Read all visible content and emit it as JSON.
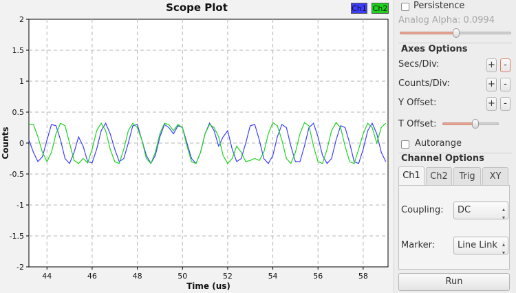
{
  "plot": {
    "title": "Scope Plot",
    "xlabel": "Time (us)",
    "ylabel": "Counts",
    "legend": [
      {
        "label": "Ch1",
        "color": "#3c3cff"
      },
      {
        "label": "Ch2",
        "color": "#1ed21e"
      }
    ]
  },
  "chart_data": {
    "type": "line",
    "title": "Scope Plot",
    "xlabel": "Time (us)",
    "ylabel": "Counts",
    "xlim": [
      43.2,
      59.1
    ],
    "ylim": [
      -2,
      2
    ],
    "x_ticks": [
      "44",
      "46",
      "48",
      "50",
      "52",
      "54",
      "56",
      "58"
    ],
    "y_ticks": [
      "2",
      "1.5",
      "1",
      "0.5",
      "0",
      "-0.5",
      "-1",
      "-1.5",
      "-2"
    ],
    "grid": true,
    "legend_position": "top-right",
    "series": [
      {
        "name": "Ch1",
        "color": "#3c3cff",
        "x": [
          43.2,
          43.4,
          43.6,
          43.8,
          44.0,
          44.2,
          44.4,
          44.6,
          44.8,
          45.0,
          45.2,
          45.4,
          45.6,
          45.8,
          46.0,
          46.2,
          46.4,
          46.6,
          46.8,
          47.0,
          47.2,
          47.4,
          47.6,
          47.8,
          48.0,
          48.2,
          48.4,
          48.6,
          48.8,
          49.0,
          49.2,
          49.4,
          49.6,
          49.8,
          50.0,
          50.2,
          50.4,
          50.6,
          50.8,
          51.0,
          51.2,
          51.4,
          51.6,
          51.8,
          52.0,
          52.2,
          52.4,
          52.6,
          52.8,
          53.0,
          53.2,
          53.4,
          53.6,
          53.8,
          54.0,
          54.2,
          54.4,
          54.6,
          54.8,
          55.0,
          55.2,
          55.4,
          55.6,
          55.8,
          56.0,
          56.2,
          56.4,
          56.6,
          56.8,
          57.0,
          57.2,
          57.4,
          57.6,
          57.8,
          58.0,
          58.2,
          58.4,
          58.6,
          58.8,
          59.0
        ],
        "y": [
          0.05,
          -0.15,
          -0.3,
          -0.22,
          0.05,
          0.3,
          0.28,
          0.05,
          -0.25,
          -0.33,
          -0.15,
          0.1,
          -0.05,
          -0.3,
          -0.32,
          -0.1,
          0.2,
          0.32,
          0.15,
          -0.1,
          -0.3,
          -0.25,
          0.0,
          0.28,
          0.3,
          0.05,
          -0.2,
          -0.33,
          -0.2,
          0.1,
          0.3,
          0.25,
          0.15,
          0.28,
          0.25,
          0.0,
          -0.25,
          -0.33,
          -0.15,
          0.15,
          0.32,
          0.2,
          -0.05,
          0.1,
          0.2,
          -0.1,
          -0.3,
          -0.25,
          0.0,
          0.28,
          0.3,
          0.05,
          -0.25,
          -0.33,
          -0.2,
          0.1,
          0.3,
          0.25,
          -0.05,
          -0.3,
          -0.3,
          -0.05,
          0.25,
          0.32,
          0.1,
          -0.2,
          -0.33,
          -0.25,
          0.05,
          0.28,
          0.25,
          0.0,
          -0.3,
          -0.33,
          -0.1,
          0.2,
          0.32,
          0.15,
          -0.15,
          -0.3
        ]
      },
      {
        "name": "Ch2",
        "color": "#1ed21e",
        "x": [
          43.2,
          43.4,
          43.6,
          43.8,
          44.0,
          44.2,
          44.4,
          44.6,
          44.8,
          45.0,
          45.2,
          45.4,
          45.6,
          45.8,
          46.0,
          46.2,
          46.4,
          46.6,
          46.8,
          47.0,
          47.2,
          47.4,
          47.6,
          47.8,
          48.0,
          48.2,
          48.4,
          48.6,
          48.8,
          49.0,
          49.2,
          49.4,
          49.6,
          49.8,
          50.0,
          50.2,
          50.4,
          50.6,
          50.8,
          51.0,
          51.2,
          51.4,
          51.6,
          51.8,
          52.0,
          52.2,
          52.4,
          52.6,
          52.8,
          53.0,
          53.2,
          53.4,
          53.6,
          53.8,
          54.0,
          54.2,
          54.4,
          54.6,
          54.8,
          55.0,
          55.2,
          55.4,
          55.6,
          55.8,
          56.0,
          56.2,
          56.4,
          56.6,
          56.8,
          57.0,
          57.2,
          57.4,
          57.6,
          57.8,
          58.0,
          58.2,
          58.4,
          58.6,
          58.8,
          59.0
        ],
        "y": [
          0.3,
          0.3,
          0.1,
          -0.15,
          -0.3,
          -0.15,
          0.15,
          0.32,
          0.28,
          0.0,
          -0.28,
          -0.33,
          -0.25,
          -0.32,
          -0.1,
          0.2,
          0.32,
          0.2,
          -0.1,
          -0.3,
          -0.33,
          -0.1,
          0.2,
          0.32,
          0.25,
          0.05,
          -0.25,
          -0.33,
          -0.15,
          0.15,
          0.32,
          0.3,
          0.2,
          0.3,
          0.25,
          -0.05,
          -0.3,
          -0.33,
          -0.15,
          0.15,
          0.3,
          0.25,
          0.1,
          -0.2,
          -0.33,
          -0.25,
          -0.05,
          -0.15,
          -0.3,
          -0.28,
          -0.25,
          -0.28,
          -0.15,
          0.15,
          0.33,
          0.28,
          0.05,
          -0.25,
          -0.33,
          -0.15,
          0.15,
          0.33,
          0.28,
          -0.05,
          -0.3,
          -0.33,
          -0.1,
          0.2,
          0.33,
          0.25,
          -0.05,
          -0.3,
          -0.33,
          -0.1,
          0.15,
          0.32,
          0.25,
          0.0,
          0.25,
          0.32
        ]
      }
    ]
  },
  "panel": {
    "persistence_label": "Persistence",
    "persistence_checked": false,
    "analog_alpha_label": "Analog Alpha: 0.0994",
    "analog_alpha_value": 0.62,
    "axes_options_title": "Axes Options",
    "secs_div_label": "Secs/Div:",
    "counts_div_label": "Counts/Div:",
    "y_offset_label": "Y Offset:",
    "t_offset_label": "T Offset:",
    "t_offset_value": 0.6,
    "plus_label": "+",
    "minus_label": "-",
    "autorange_label": "Autorange",
    "autorange_checked": false,
    "channel_options_title": "Channel Options",
    "tabs": [
      "Ch1",
      "Ch2",
      "Trig",
      "XY"
    ],
    "active_tab": "Ch1",
    "coupling_label": "Coupling:",
    "coupling_value": "DC",
    "marker_label": "Marker:",
    "marker_value": "Line Link",
    "run_label": "Run"
  }
}
